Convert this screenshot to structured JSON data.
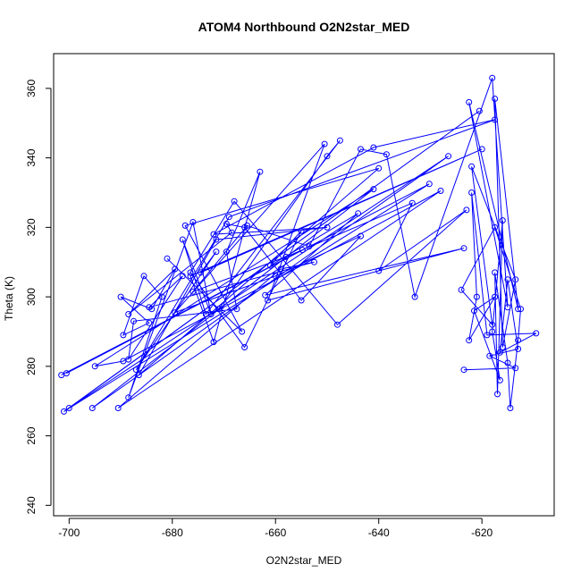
{
  "chart_data": {
    "type": "scatter",
    "title": "ATOM4 Northbound O2N2star_MED",
    "xlabel": "O2N2star_MED",
    "ylabel": "Theta (K)",
    "xlim": [
      -703,
      -606
    ],
    "ylim": [
      237,
      370
    ],
    "xticks": [
      -700,
      -680,
      -660,
      -640,
      -620
    ],
    "yticks": [
      240,
      260,
      280,
      300,
      320,
      340,
      360
    ],
    "grid": false,
    "legend": "none",
    "colors": {
      "series": "#0000ff",
      "axes": "#000000",
      "background": "#ffffff"
    },
    "series": [
      {
        "style": "line-with-open-circles",
        "points": [
          [
            -701.5,
            277.5
          ],
          [
            -654.8,
            313.5
          ],
          [
            -700.5,
            278.0
          ],
          [
            -630.2,
            332.5
          ],
          [
            -701.0,
            267.0
          ],
          [
            -620.5,
            353.5
          ],
          [
            -700.0,
            268.0
          ],
          [
            -626.5,
            340.5
          ],
          [
            -695.5,
            268.0
          ],
          [
            -641.0,
            331.0
          ],
          [
            -695.0,
            280.0
          ],
          [
            -689.5,
            281.5
          ],
          [
            -628.0,
            330.5
          ],
          [
            -690.5,
            268.0
          ],
          [
            -659.0,
            308.0
          ],
          [
            -652.5,
            310.0
          ],
          [
            -684.5,
            297.0
          ],
          [
            -678.0,
            306.0
          ],
          [
            -688.5,
            282.0
          ],
          [
            -687.5,
            293.0
          ],
          [
            -667.5,
            296.5
          ],
          [
            -669.5,
            313.0
          ],
          [
            -663.0,
            336.0
          ],
          [
            -672.0,
            287.0
          ],
          [
            -676.5,
            306.0
          ],
          [
            -620.0,
            342.5
          ],
          [
            -674.5,
            307.0
          ],
          [
            -671.5,
            313.0
          ],
          [
            -687.0,
            279.0
          ],
          [
            -669.0,
            323.0
          ],
          [
            -617.5,
            351.0
          ],
          [
            -641.0,
            343.0
          ],
          [
            -672.0,
            318.0
          ],
          [
            -650.0,
            320.0
          ],
          [
            -671.5,
            316.5
          ],
          [
            -686.5,
            277.5
          ],
          [
            -640.0,
            337.0
          ],
          [
            -677.5,
            320.5
          ],
          [
            -666.5,
            290.0
          ],
          [
            -681.0,
            311.0
          ],
          [
            -671.0,
            296.5
          ],
          [
            -650.0,
            340.5
          ],
          [
            -647.5,
            345.0
          ],
          [
            -673.5,
            295.0
          ],
          [
            -678.0,
            316.5
          ],
          [
            -672.5,
            295.0
          ],
          [
            -676.0,
            321.5
          ],
          [
            -688.5,
            271.0
          ],
          [
            -682.0,
            300.0
          ],
          [
            -685.5,
            306.0
          ],
          [
            -689.5,
            289.0
          ],
          [
            -684.5,
            292.5
          ],
          [
            -690.0,
            300.0
          ],
          [
            -684.0,
            296.5
          ],
          [
            -679.5,
            308.0
          ],
          [
            -688.5,
            295.0
          ],
          [
            -668.5,
            318.5
          ],
          [
            -669.5,
            321.0
          ],
          [
            -666.0,
            320.0
          ],
          [
            -655.0,
            299.0
          ],
          [
            -643.5,
            317.5
          ],
          [
            -660.0,
            306.0
          ],
          [
            -679.5,
            295.5
          ],
          [
            -650.5,
            344.0
          ],
          [
            -661.5,
            299.0
          ],
          [
            -623.5,
            314.0
          ],
          [
            -662.0,
            300.5
          ],
          [
            -644.0,
            324.0
          ],
          [
            -661.0,
            309.0
          ],
          [
            -655.0,
            319.0
          ],
          [
            -666.0,
            285.5
          ],
          [
            -676.5,
            307.0
          ],
          [
            -668.0,
            327.5
          ],
          [
            -648.0,
            292.0
          ],
          [
            -623.0,
            325.0
          ],
          [
            -640.0,
            307.5
          ],
          [
            -633.5,
            327.0
          ],
          [
            -658.0,
            311.5
          ],
          [
            -676.0,
            301.5
          ],
          [
            -665.5,
            320.5
          ],
          [
            -653.5,
            314.5
          ],
          [
            -643.5,
            342.5
          ],
          [
            -638.5,
            341.0
          ],
          [
            -633.0,
            300.0
          ],
          [
            -618.0,
            363.0
          ],
          [
            -615.0,
            297.0
          ],
          [
            -622.5,
            356.0
          ],
          [
            -613.0,
            296.5
          ],
          [
            -617.5,
            357.0
          ],
          [
            -616.0,
            285.5
          ],
          [
            -613.5,
            305.0
          ],
          [
            -622.0,
            337.5
          ],
          [
            -618.0,
            292.0
          ],
          [
            -624.0,
            302.0
          ],
          [
            -617.5,
            320.0
          ],
          [
            -612.5,
            296.5
          ],
          [
            -613.0,
            287.5
          ],
          [
            -614.5,
            268.0
          ],
          [
            -615.0,
            281.0
          ],
          [
            -617.5,
            307.0
          ],
          [
            -617.0,
            272.0
          ],
          [
            -616.0,
            322.0
          ],
          [
            -618.0,
            290.0
          ],
          [
            -616.5,
            276.0
          ],
          [
            -621.5,
            296.0
          ],
          [
            -617.5,
            300.0
          ],
          [
            -622.5,
            287.5
          ],
          [
            -621.0,
            300.0
          ],
          [
            -622.0,
            330.0
          ],
          [
            -619.0,
            289.0
          ],
          [
            -609.5,
            289.5
          ],
          [
            -616.5,
            284.0
          ],
          [
            -615.0,
            305.0
          ],
          [
            -613.0,
            285.0
          ],
          [
            -618.5,
            283.0
          ],
          [
            -613.5,
            279.5
          ],
          [
            -623.5,
            279.0
          ]
        ]
      }
    ]
  }
}
